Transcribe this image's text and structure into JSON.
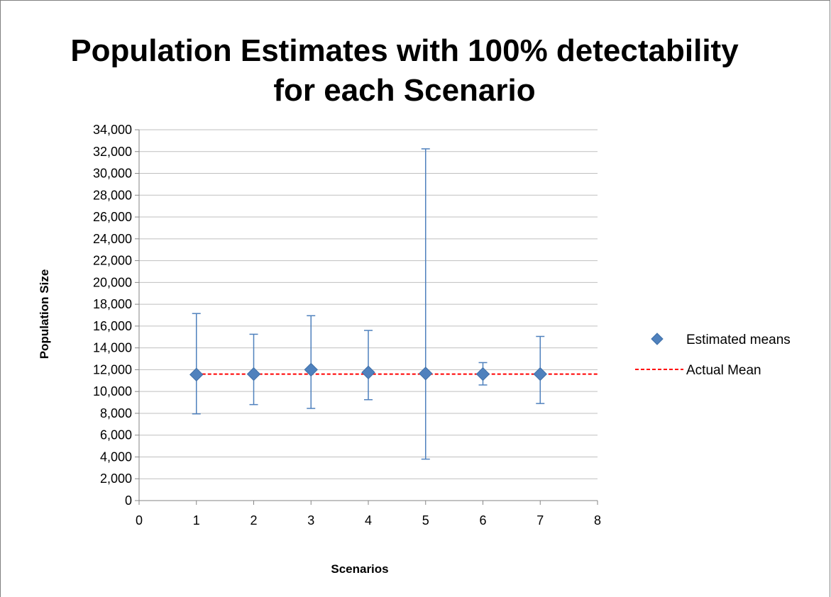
{
  "chart_data": {
    "type": "scatter",
    "title_line1": "Population Estimates with 100% detectability",
    "title_line2": "for each Scenario",
    "xlabel": "Scenarios",
    "ylabel": "Population Size",
    "xlim": [
      0,
      8
    ],
    "ylim": [
      0,
      34000
    ],
    "x_ticks": [
      0,
      1,
      2,
      3,
      4,
      5,
      6,
      7,
      8
    ],
    "x_tick_labels": [
      "0",
      "1",
      "2",
      "3",
      "4",
      "5",
      "6",
      "7",
      "8"
    ],
    "y_ticks": [
      0,
      2000,
      4000,
      6000,
      8000,
      10000,
      12000,
      14000,
      16000,
      18000,
      20000,
      22000,
      24000,
      26000,
      28000,
      30000,
      32000,
      34000
    ],
    "y_tick_labels": [
      "0",
      "2,000",
      "4,000",
      "6,000",
      "8,000",
      "10,000",
      "12,000",
      "14,000",
      "16,000",
      "18,000",
      "20,000",
      "22,000",
      "24,000",
      "26,000",
      "28,000",
      "30,000",
      "32,000",
      "34,000"
    ],
    "grid": "horizontal",
    "legend_position": "right",
    "series": [
      {
        "name": "Estimated means",
        "marker": "diamond",
        "color": "#4F81BD",
        "x": [
          1,
          2,
          3,
          4,
          5,
          6,
          7
        ],
        "y": [
          11550,
          11600,
          12000,
          11750,
          11650,
          11600,
          11600
        ],
        "error_low": [
          7950,
          8800,
          8450,
          9250,
          3800,
          10600,
          8900
        ],
        "error_high": [
          17150,
          15250,
          16950,
          15600,
          32250,
          12650,
          15050
        ]
      },
      {
        "name": "Actual Mean",
        "line_style": "dashed",
        "color": "#FF0000",
        "y_value": 11600
      }
    ]
  }
}
